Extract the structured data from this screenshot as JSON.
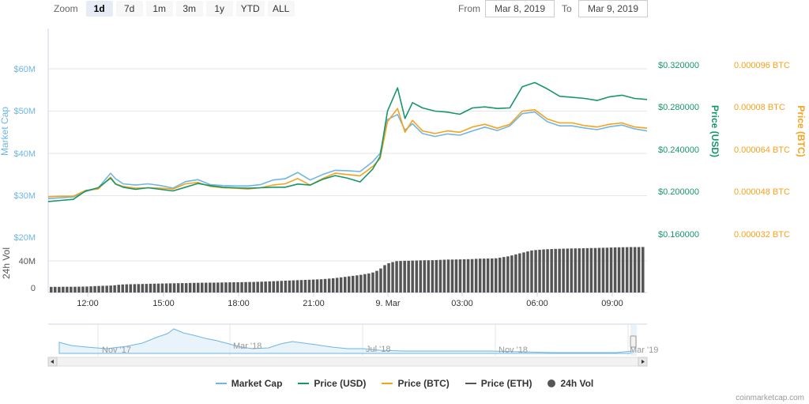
{
  "zoom": {
    "label": "Zoom",
    "buttons": [
      "1d",
      "7d",
      "1m",
      "3m",
      "1y",
      "YTD",
      "ALL"
    ],
    "active": "1d"
  },
  "range": {
    "from_label": "From",
    "from_value": "Mar 8, 2019",
    "to_label": "To",
    "to_value": "Mar 9, 2019"
  },
  "axes": {
    "market_cap_title": "Market Cap",
    "market_cap_ticks": [
      "$60M",
      "$50M",
      "$40M",
      "$30M",
      "$20M"
    ],
    "price_usd_title": "Price (USD)",
    "price_usd_ticks": [
      "$0.320000",
      "$0.280000",
      "$0.240000",
      "$0.200000",
      "$0.160000"
    ],
    "price_btc_title": "Price (BTC)",
    "price_btc_ticks": [
      "0.000096 BTC",
      "0.00008 BTC",
      "0.000064 BTC",
      "0.000048 BTC",
      "0.000032 BTC"
    ],
    "volume_title": "24h Vol",
    "volume_ticks": [
      "40M",
      "0"
    ],
    "x_ticks": [
      "12:00",
      "15:00",
      "18:00",
      "21:00",
      "9. Mar",
      "03:00",
      "06:00",
      "09:00"
    ]
  },
  "navigator": {
    "labels": [
      "Nov '17",
      "Mar '18",
      "Jul '18",
      "Nov '18",
      "Mar '19"
    ]
  },
  "legend": [
    {
      "label": "Market Cap",
      "color": "#6fb6e3",
      "kind": "line"
    },
    {
      "label": "Price (USD)",
      "color": "#16976b",
      "kind": "line"
    },
    {
      "label": "Price (BTC)",
      "color": "#f7a21b",
      "kind": "line"
    },
    {
      "label": "Price (ETH)",
      "color": "#555555",
      "kind": "line"
    },
    {
      "label": "24h Vol",
      "color": "#555555",
      "kind": "dot"
    }
  ],
  "credit": "coinmarketcap.com",
  "colors": {
    "market_cap": "#6fb6e3",
    "price_usd": "#16976b",
    "price_btc": "#f7a21b",
    "volume": "#555555"
  },
  "chart_data": {
    "type": "line",
    "x_range": [
      "Mar 8, 2019 10:30",
      "Mar 9, 2019 10:30"
    ],
    "ylim_market_cap_musd": [
      20,
      60
    ],
    "ylim_price_usd": [
      0.16,
      0.32
    ],
    "ylim_price_btc": [
      3.2e-05,
      9.6e-05
    ],
    "ylim_volume_m": [
      0,
      50
    ],
    "x_hours": [
      0,
      0.5,
      1,
      1.5,
      2,
      2.5,
      2.7,
      3,
      3.5,
      4,
      4.5,
      5,
      5.5,
      6,
      6.5,
      7,
      7.5,
      8,
      8.5,
      9,
      9.5,
      10,
      10.5,
      11,
      11.5,
      12,
      12.5,
      13,
      13.3,
      13.6,
      14,
      14.3,
      14.6,
      15,
      15.5,
      16,
      16.5,
      17,
      17.5,
      18,
      18.5,
      19,
      19.5,
      20,
      20.5,
      21,
      21.5,
      22,
      22.5,
      23,
      23.5,
      24
    ],
    "series": [
      {
        "name": "Price (USD)",
        "axis": "usd",
        "values": [
          0.1945,
          0.1955,
          0.1965,
          0.2045,
          0.2075,
          0.2165,
          0.211,
          0.208,
          0.206,
          0.2075,
          0.206,
          0.2045,
          0.208,
          0.2115,
          0.2095,
          0.208,
          0.2075,
          0.207,
          0.2075,
          0.208,
          0.208,
          0.211,
          0.21,
          0.2155,
          0.219,
          0.2165,
          0.213,
          0.225,
          0.237,
          0.28,
          0.302,
          0.273,
          0.288,
          0.283,
          0.28,
          0.279,
          0.277,
          0.283,
          0.284,
          0.2825,
          0.283,
          0.303,
          0.307,
          0.301,
          0.294,
          0.293,
          0.292,
          0.29,
          0.2935,
          0.295,
          0.292,
          0.291
        ]
      },
      {
        "name": "Price (BTC)",
        "axis": "btc",
        "values": [
          4.76e-05,
          4.78e-05,
          4.78e-05,
          5e-05,
          5.05e-05,
          5.5e-05,
          5.25e-05,
          5.15e-05,
          5.08e-05,
          5.1e-05,
          5.08e-05,
          5.05e-05,
          5.25e-05,
          5.3e-05,
          5.15e-05,
          5.1e-05,
          5.08e-05,
          5.05e-05,
          5.1e-05,
          5.2e-05,
          5.25e-05,
          5.45e-05,
          5.2e-05,
          5.45e-05,
          5.65e-05,
          5.6e-05,
          5.55e-05,
          5.9e-05,
          6.2e-05,
          7.6e-05,
          8.1e-05,
          7.2e-05,
          7.65e-05,
          7.25e-05,
          7.15e-05,
          7.25e-05,
          7.2e-05,
          7.4e-05,
          7.5e-05,
          7.35e-05,
          7.5e-05,
          8e-05,
          8.05e-05,
          7.7e-05,
          7.55e-05,
          7.55e-05,
          7.45e-05,
          7.4e-05,
          7.5e-05,
          7.55e-05,
          7.4e-05,
          7.35e-05
        ]
      },
      {
        "name": "Market Cap",
        "axis": "mcap",
        "values": [
          29.3,
          29.5,
          29.7,
          31.0,
          31.8,
          35.3,
          34.0,
          32.8,
          32.5,
          32.8,
          32.4,
          31.8,
          33.3,
          33.8,
          32.6,
          32.4,
          32.3,
          32.3,
          32.6,
          33.7,
          34.0,
          35.5,
          33.7,
          35.0,
          36.0,
          35.9,
          35.7,
          38.0,
          40.0,
          48.0,
          49.2,
          45.5,
          47.0,
          44.7,
          44.0,
          44.6,
          44.3,
          45.3,
          46.2,
          45.4,
          46.5,
          49.4,
          49.8,
          47.5,
          46.5,
          46.5,
          46.0,
          45.6,
          46.3,
          46.7,
          45.8,
          45.3
        ]
      },
      {
        "name": "24h Vol",
        "axis": "vol",
        "kind": "bar",
        "values": [
          5.5,
          5.6,
          5.6,
          5.9,
          6.5,
          6.8,
          7.5,
          8.0,
          8.2,
          8.5,
          8.8,
          9.0,
          9.2,
          9.5,
          9.6,
          9.8,
          10.0,
          10.2,
          10.5,
          11.0,
          11.5,
          12.0,
          12.5,
          13.0,
          14.0,
          15.5,
          17.0,
          19.0,
          22.0,
          28.0,
          30.5,
          30.8,
          31.0,
          31.3,
          31.5,
          32.0,
          32.2,
          32.5,
          33.0,
          33.2,
          35.0,
          38.0,
          41.0,
          42.0,
          42.5,
          42.8,
          43.0,
          43.3,
          43.6,
          44.0,
          44.2,
          44.3
        ]
      }
    ]
  }
}
